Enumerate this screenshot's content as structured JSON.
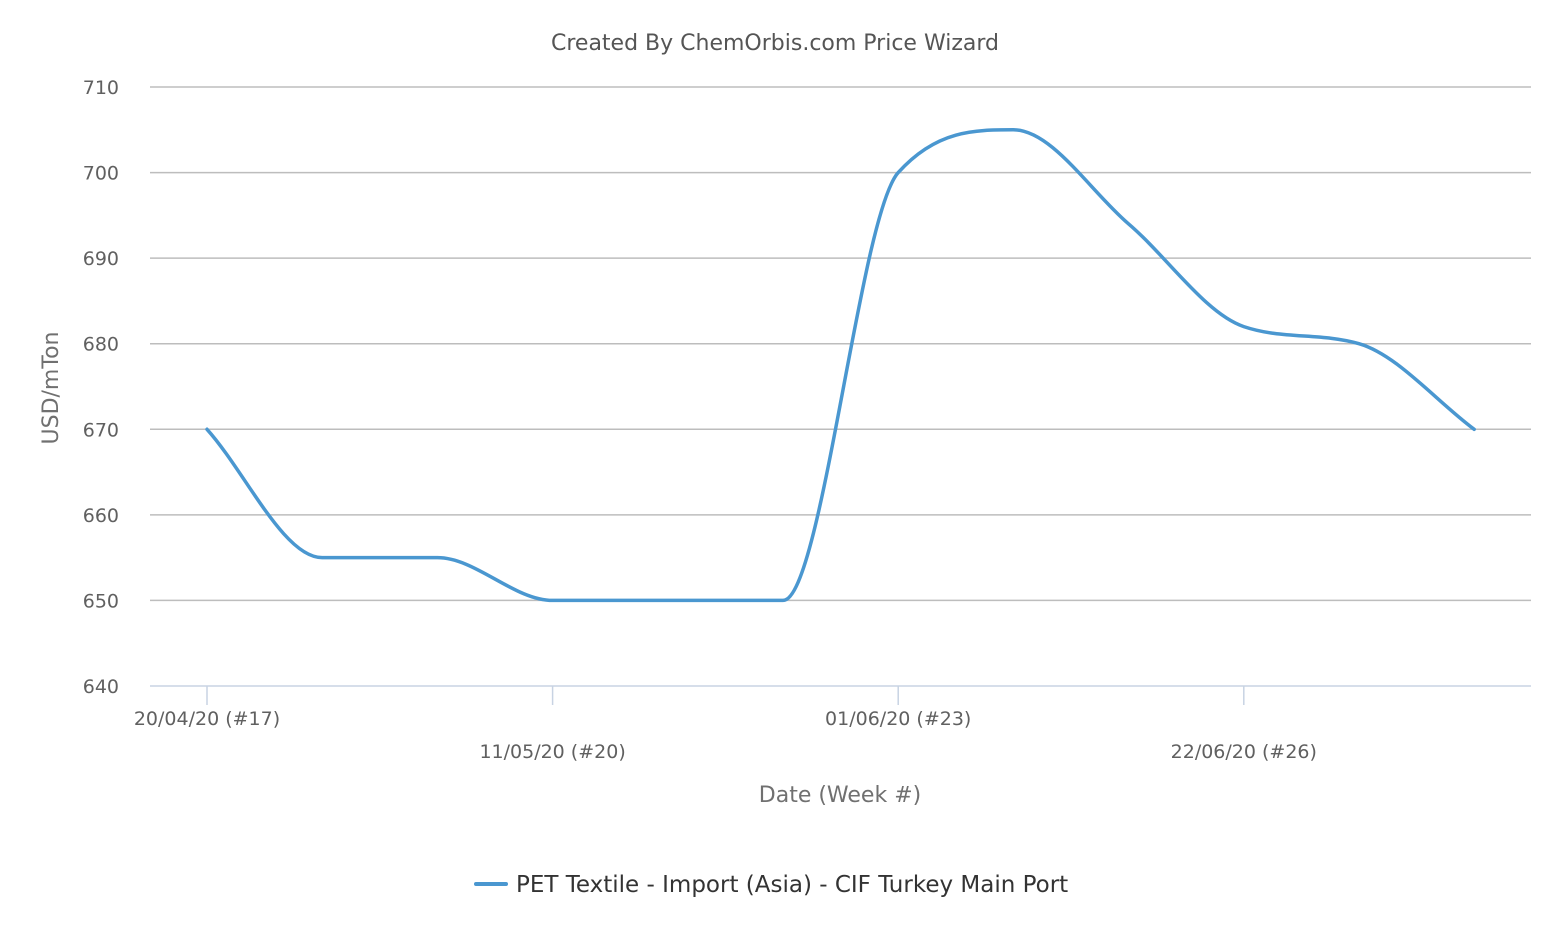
{
  "chart_data": {
    "type": "line",
    "title": "Created By ChemOrbis.com Price Wizard",
    "xlabel": "Date (Week #)",
    "ylabel": "USD/mTon",
    "ylim": [
      640,
      710
    ],
    "yticks": [
      640,
      650,
      660,
      670,
      680,
      690,
      700,
      710
    ],
    "grid": true,
    "legend_position": "bottom-center",
    "x_tick_labels": [
      {
        "week": 17,
        "label": "20/04/20 (#17)"
      },
      {
        "week": 20,
        "label": "11/05/20 (#20)"
      },
      {
        "week": 23,
        "label": "01/06/20 (#23)"
      },
      {
        "week": 26,
        "label": "22/06/20 (#26)"
      }
    ],
    "series": [
      {
        "name": "PET Textile - Import (Asia)  - CIF Turkey Main Port",
        "color": "#4a97d0",
        "points": [
          {
            "x": "20/04/20",
            "y": 670
          },
          {
            "x": "27/04/20",
            "y": 655
          },
          {
            "x": "04/05/20",
            "y": 655
          },
          {
            "x": "11/05/20",
            "y": 650
          },
          {
            "x": "18/05/20",
            "y": 650
          },
          {
            "x": "25/05/20",
            "y": 650
          },
          {
            "x": "01/06/20",
            "y": 700
          },
          {
            "x": "08/06/20",
            "y": 705
          },
          {
            "x": "15/06/20",
            "y": 694
          },
          {
            "x": "22/06/20",
            "y": 682
          },
          {
            "x": "29/06/20",
            "y": 680
          },
          {
            "x": "06/07/20",
            "y": 670
          }
        ]
      }
    ]
  }
}
